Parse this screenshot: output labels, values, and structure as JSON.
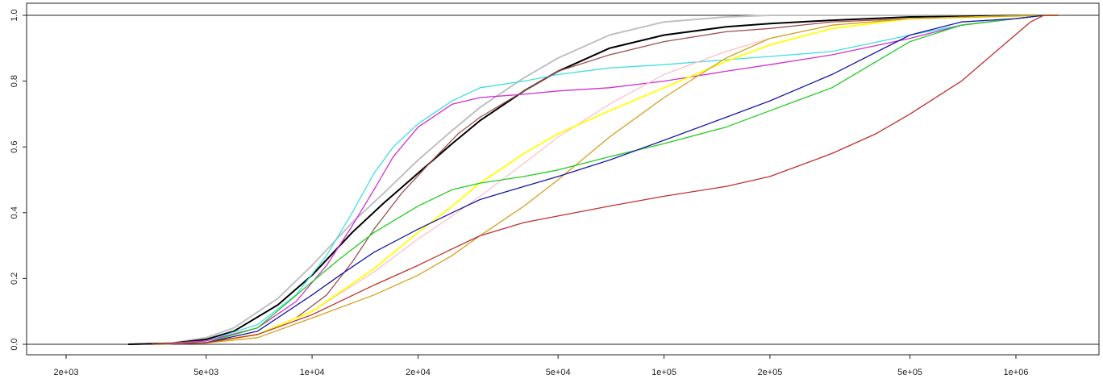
{
  "chart_data": {
    "type": "line",
    "title": "",
    "xlabel": "",
    "ylabel": "",
    "x_scale": "log10",
    "xlim": [
      1600,
      1600000
    ],
    "ylim": [
      -0.02,
      1.0
    ],
    "grid": false,
    "legend": "none",
    "reference_lines_y": [
      0,
      1
    ],
    "x_ticks": [
      {
        "value": 2000,
        "label": "2e+03"
      },
      {
        "value": 5000,
        "label": "5e+03"
      },
      {
        "value": 10000,
        "label": "1e+04"
      },
      {
        "value": 20000,
        "label": "2e+04"
      },
      {
        "value": 50000,
        "label": "5e+04"
      },
      {
        "value": 100000,
        "label": "1e+05"
      },
      {
        "value": 200000,
        "label": "2e+05"
      },
      {
        "value": 500000,
        "label": "5e+05"
      },
      {
        "value": 1000000,
        "label": "1e+06"
      }
    ],
    "y_ticks": [
      {
        "value": 0.0,
        "label": "0.0"
      },
      {
        "value": 0.2,
        "label": "0.2"
      },
      {
        "value": 0.4,
        "label": "0.4"
      },
      {
        "value": 0.6,
        "label": "0.6"
      },
      {
        "value": 0.8,
        "label": "0.8"
      },
      {
        "value": 1.0,
        "label": "1.0"
      }
    ],
    "series": [
      {
        "color": "#c0c0c0",
        "width": 2,
        "x": [
          3000,
          4000,
          5000,
          6000,
          8000,
          10000,
          13000,
          16000,
          20000,
          25000,
          30000,
          40000,
          50000,
          70000,
          100000,
          150000,
          200000,
          300000,
          1200000
        ],
        "y": [
          0.0,
          0.004,
          0.02,
          0.05,
          0.14,
          0.24,
          0.37,
          0.46,
          0.56,
          0.65,
          0.72,
          0.81,
          0.87,
          0.94,
          0.98,
          0.995,
          1.0,
          1.0,
          1.0
        ]
      },
      {
        "color": "#000000",
        "width": 2,
        "x": [
          3000,
          4000,
          5000,
          6000,
          8000,
          10000,
          13000,
          16000,
          20000,
          25000,
          30000,
          40000,
          50000,
          70000,
          100000,
          150000,
          200000,
          300000,
          500000,
          1200000
        ],
        "y": [
          0.0,
          0.003,
          0.015,
          0.04,
          0.12,
          0.21,
          0.34,
          0.43,
          0.52,
          0.61,
          0.68,
          0.77,
          0.83,
          0.9,
          0.94,
          0.965,
          0.975,
          0.985,
          0.995,
          1.0
        ]
      },
      {
        "color": "#40e0e0",
        "width": 1.3,
        "x": [
          3500,
          5000,
          7000,
          9000,
          11000,
          13000,
          15000,
          17000,
          20000,
          25000,
          30000,
          40000,
          50000,
          70000,
          100000,
          150000,
          200000,
          300000,
          500000,
          700000,
          1000000,
          1200000
        ],
        "y": [
          0.0,
          0.01,
          0.06,
          0.15,
          0.27,
          0.4,
          0.52,
          0.6,
          0.67,
          0.74,
          0.78,
          0.8,
          0.82,
          0.84,
          0.85,
          0.865,
          0.875,
          0.89,
          0.94,
          0.97,
          0.99,
          1.0
        ]
      },
      {
        "color": "#d030d0",
        "width": 1.3,
        "x": [
          3500,
          5000,
          7000,
          9000,
          11000,
          13000,
          15000,
          17000,
          20000,
          25000,
          30000,
          40000,
          50000,
          70000,
          100000,
          150000,
          200000,
          300000,
          500000,
          700000,
          1000000,
          1200000
        ],
        "y": [
          0.0,
          0.01,
          0.05,
          0.13,
          0.24,
          0.36,
          0.47,
          0.57,
          0.66,
          0.73,
          0.75,
          0.76,
          0.77,
          0.78,
          0.8,
          0.83,
          0.85,
          0.88,
          0.93,
          0.97,
          0.99,
          1.0
        ]
      },
      {
        "color": "#a05050",
        "width": 1.3,
        "x": [
          3500,
          5000,
          7000,
          9000,
          11000,
          13000,
          15000,
          18000,
          22000,
          26000,
          30000,
          40000,
          50000,
          70000,
          100000,
          150000,
          200000,
          300000,
          500000,
          1200000
        ],
        "y": [
          0.0,
          0.005,
          0.03,
          0.08,
          0.15,
          0.25,
          0.35,
          0.46,
          0.56,
          0.64,
          0.69,
          0.77,
          0.83,
          0.88,
          0.92,
          0.95,
          0.96,
          0.98,
          0.99,
          1.0
        ]
      },
      {
        "color": "#ffc0cb",
        "width": 1.3,
        "x": [
          3500,
          5000,
          7000,
          10000,
          15000,
          20000,
          25000,
          30000,
          40000,
          50000,
          70000,
          100000,
          150000,
          200000,
          300000,
          500000,
          1200000
        ],
        "y": [
          0.0,
          0.005,
          0.03,
          0.1,
          0.22,
          0.32,
          0.39,
          0.45,
          0.55,
          0.63,
          0.73,
          0.82,
          0.89,
          0.93,
          0.97,
          0.99,
          1.0
        ]
      },
      {
        "color": "#ffff00",
        "width": 1.8,
        "x": [
          3500,
          5000,
          7000,
          10000,
          15000,
          20000,
          25000,
          30000,
          40000,
          50000,
          70000,
          100000,
          150000,
          200000,
          300000,
          500000,
          1200000
        ],
        "y": [
          0.0,
          0.005,
          0.03,
          0.1,
          0.23,
          0.34,
          0.42,
          0.49,
          0.58,
          0.64,
          0.71,
          0.78,
          0.86,
          0.91,
          0.96,
          0.99,
          1.0
        ]
      },
      {
        "color": "#d4a020",
        "width": 1.3,
        "x": [
          3500,
          5000,
          7000,
          10000,
          15000,
          20000,
          25000,
          30000,
          40000,
          50000,
          70000,
          100000,
          150000,
          200000,
          300000,
          500000,
          1200000
        ],
        "y": [
          0.0,
          0.004,
          0.02,
          0.08,
          0.15,
          0.21,
          0.27,
          0.33,
          0.42,
          0.5,
          0.63,
          0.75,
          0.87,
          0.93,
          0.97,
          0.99,
          1.0
        ]
      },
      {
        "color": "#22cc22",
        "width": 1.3,
        "x": [
          3500,
          5000,
          7000,
          10000,
          12000,
          15000,
          20000,
          25000,
          30000,
          40000,
          50000,
          70000,
          100000,
          150000,
          200000,
          300000,
          500000,
          700000,
          1000000,
          1200000
        ],
        "y": [
          0.0,
          0.005,
          0.05,
          0.19,
          0.26,
          0.34,
          0.42,
          0.47,
          0.49,
          0.51,
          0.53,
          0.57,
          0.61,
          0.66,
          0.71,
          0.78,
          0.92,
          0.97,
          0.99,
          1.0
        ]
      },
      {
        "color": "#1818a0",
        "width": 1.3,
        "x": [
          3500,
          5000,
          7000,
          10000,
          12000,
          15000,
          20000,
          25000,
          30000,
          40000,
          50000,
          70000,
          100000,
          150000,
          200000,
          300000,
          500000,
          700000,
          1000000,
          1200000
        ],
        "y": [
          0.0,
          0.005,
          0.04,
          0.15,
          0.21,
          0.28,
          0.35,
          0.4,
          0.44,
          0.48,
          0.51,
          0.56,
          0.62,
          0.69,
          0.74,
          0.82,
          0.94,
          0.98,
          0.99,
          1.0
        ]
      },
      {
        "color": "#c03030",
        "width": 1.3,
        "x": [
          3500,
          5000,
          7000,
          10000,
          15000,
          20000,
          25000,
          30000,
          40000,
          50000,
          70000,
          100000,
          150000,
          200000,
          300000,
          400000,
          500000,
          700000,
          900000,
          1100000,
          1200000
        ],
        "y": [
          0.0,
          0.005,
          0.03,
          0.09,
          0.18,
          0.24,
          0.29,
          0.33,
          0.37,
          0.39,
          0.42,
          0.45,
          0.48,
          0.51,
          0.58,
          0.64,
          0.7,
          0.8,
          0.9,
          0.98,
          1.0
        ]
      }
    ]
  }
}
